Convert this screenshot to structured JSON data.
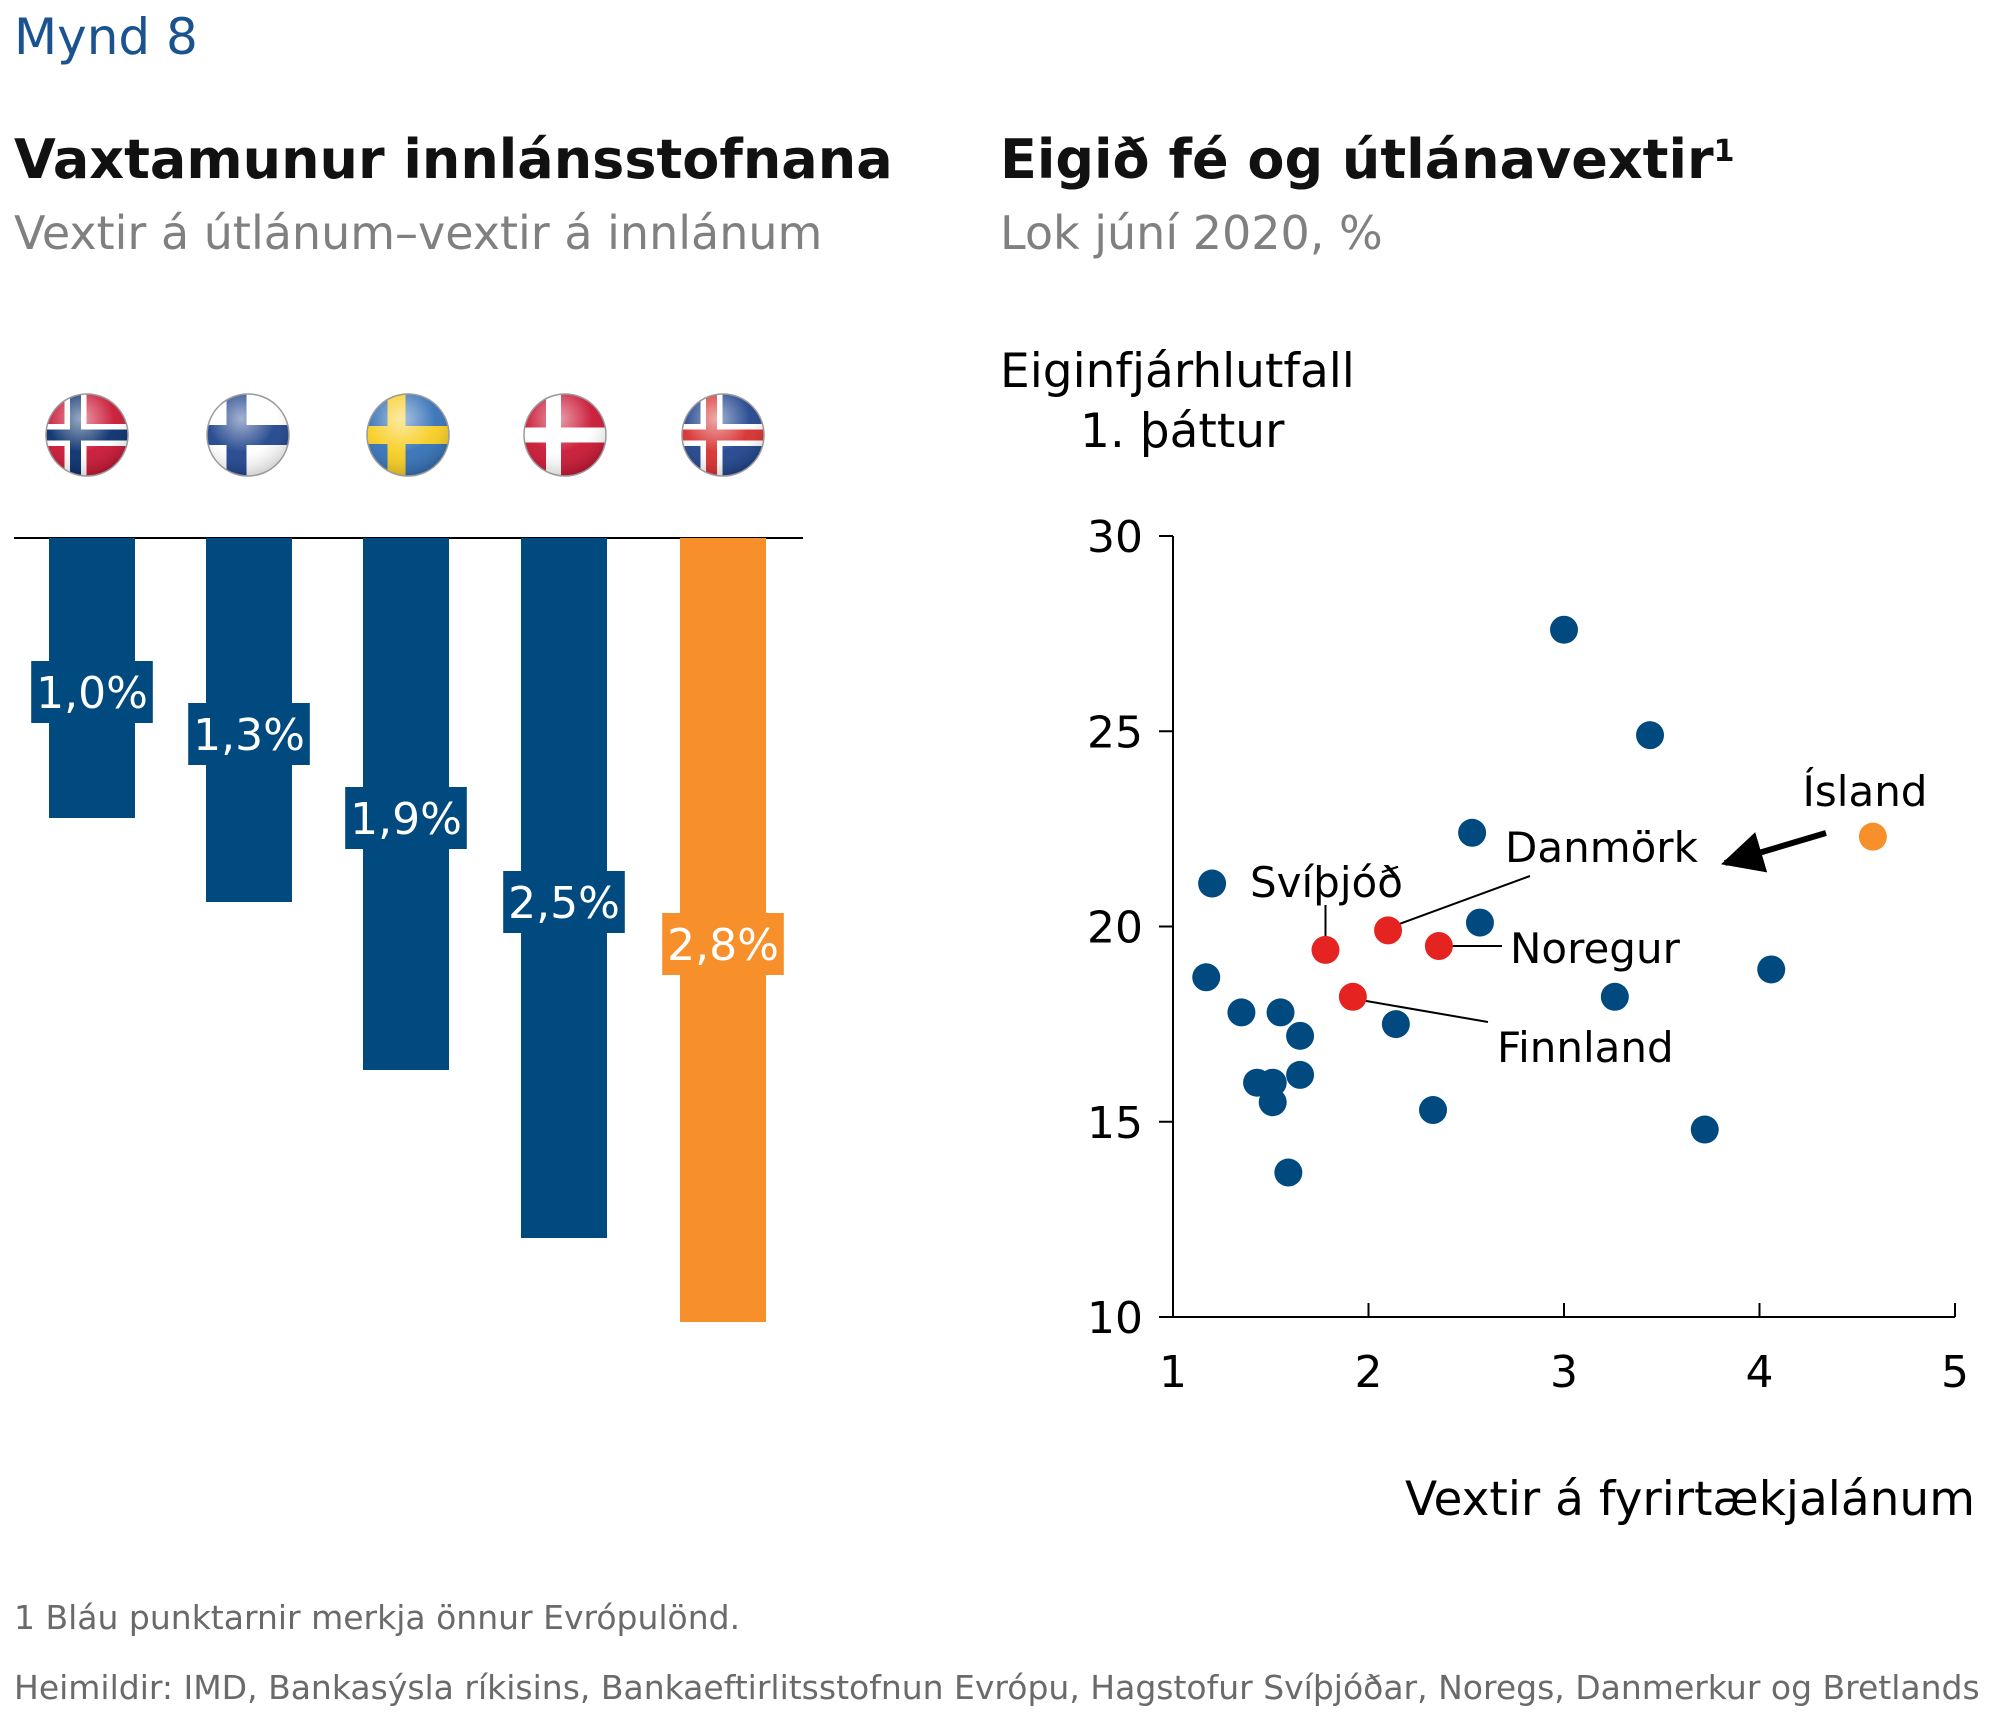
{
  "figure_label": "Mynd 8",
  "left_chart": {
    "title": "Vaxtamunur innlánsstofnana",
    "subtitle": "Vextir á útlánum–vextir á innlánum"
  },
  "right_chart": {
    "title": "Eigið fé og útlánavextir",
    "title_footnote_marker": "1",
    "subtitle": "Lok júní 2020, %"
  },
  "footnotes": {
    "note1": "1 Bláu punktarnir merkja önnur Evrópulönd.",
    "sources": "Heimildir: IMD, Bankasýsla ríkisins, Bankaeftirlitsstofnun Evrópu, Hagstofur Svíþjóðar, Noregs, Danmerkur og Bretlands"
  },
  "colors": {
    "blue": "#004a7f",
    "orange": "#f7902a",
    "red": "#e52421",
    "axis": "#000000",
    "figure_label": "#1b5290"
  },
  "chart_data": [
    {
      "type": "bar",
      "orientation": "downward from baseline",
      "categories": [
        "Noregur",
        "Finnland",
        "Svíþjóð",
        "Danmörk",
        "Ísland"
      ],
      "category_icons": [
        "norway-flag-icon",
        "finland-flag-icon",
        "sweden-flag-icon",
        "denmark-flag-icon",
        "iceland-flag-icon"
      ],
      "values": [
        1.0,
        1.3,
        1.9,
        2.5,
        2.8
      ],
      "data_labels": [
        "1,0%",
        "1,3%",
        "1,9%",
        "2,5%",
        "2,8%"
      ],
      "bar_colors": [
        "blue",
        "blue",
        "blue",
        "blue",
        "orange"
      ],
      "grid": false
    },
    {
      "type": "scatter",
      "ylabel_line1": "Eiginfjárhlutfall",
      "ylabel_line2": "1. þáttur",
      "xlabel": "Vextir á fyrirtækjalánum",
      "xlim": [
        1,
        5
      ],
      "ylim": [
        10,
        30
      ],
      "xticks": [
        1,
        2,
        3,
        4,
        5
      ],
      "yticks": [
        10,
        15,
        20,
        25,
        30
      ],
      "grid": false,
      "series": [
        {
          "color": "blue",
          "points": [
            [
              3.0,
              27.6
            ],
            [
              3.44,
              24.9
            ],
            [
              2.53,
              22.4
            ],
            [
              2.57,
              20.1
            ],
            [
              1.2,
              21.1
            ],
            [
              1.17,
              18.7
            ],
            [
              1.35,
              17.8
            ],
            [
              1.55,
              17.8
            ],
            [
              1.65,
              17.2
            ],
            [
              1.65,
              16.2
            ],
            [
              1.43,
              16.0
            ],
            [
              1.51,
              16.0
            ],
            [
              1.51,
              15.5
            ],
            [
              1.59,
              13.7
            ],
            [
              2.14,
              17.5
            ],
            [
              2.33,
              15.3
            ],
            [
              3.26,
              18.2
            ],
            [
              3.72,
              14.8
            ],
            [
              4.06,
              18.9
            ]
          ]
        },
        {
          "color": "red",
          "points": [
            {
              "x": 1.78,
              "y": 19.4,
              "label": "Svíþjóð"
            },
            {
              "x": 2.1,
              "y": 19.9,
              "label": "Danmörk"
            },
            {
              "x": 2.36,
              "y": 19.5,
              "label": "Noregur"
            },
            {
              "x": 1.92,
              "y": 18.2,
              "label": "Finnland"
            }
          ]
        },
        {
          "color": "orange",
          "points": [
            {
              "x": 4.58,
              "y": 22.3,
              "label": "Ísland"
            }
          ]
        }
      ]
    }
  ]
}
